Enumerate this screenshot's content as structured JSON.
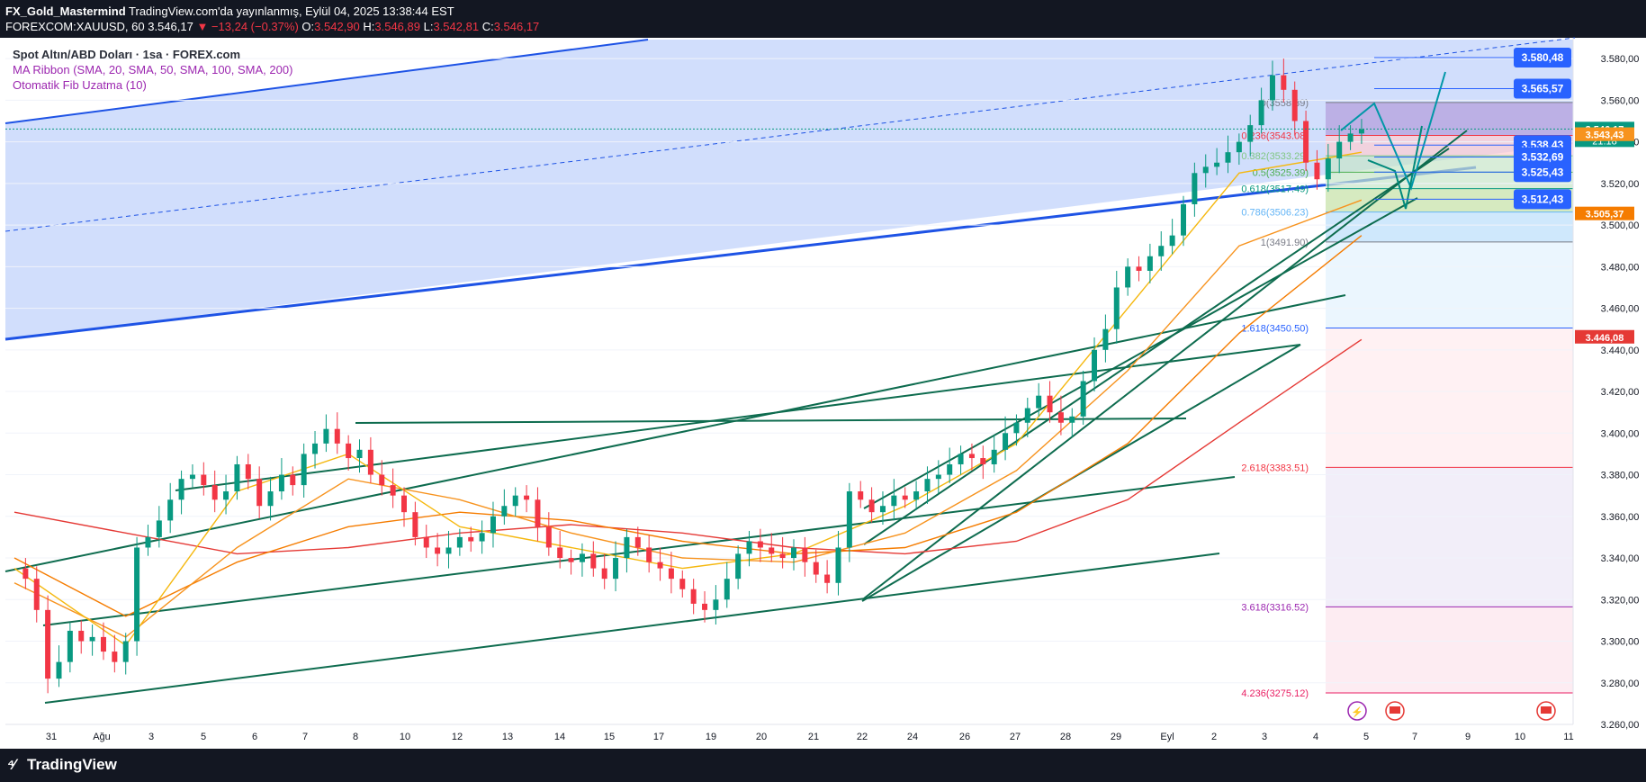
{
  "header": {
    "author": "FX_Gold_Mastermind",
    "published": "TradingView.com'da yayınlanmış, Eylül 04, 2025 13:38:44 EST",
    "symbol": "FOREXCOM:XAUUSD, 60",
    "last": "3.546,17",
    "change": "▼ −13,24 (−0.37%)",
    "o_label": "O:",
    "o_val": "3.542,90",
    "h_label": "H:",
    "h_val": "3.546,89",
    "l_label": "L:",
    "l_val": "3.542,81",
    "c_label": "C:",
    "c_val": "3.546,17"
  },
  "legend": {
    "symbol": "Spot Altın/ABD Doları · 1sa · FOREX.com",
    "ma_ribbon": "MA Ribbon (SMA, 20, SMA, 50, SMA, 100, SMA, 200)",
    "fib": "Otomatik Fib Uzatma (10)"
  },
  "footer": {
    "brand": "TradingView"
  },
  "colors": {
    "up": "#089981",
    "down": "#f23645",
    "channel": "#1e53e5",
    "trend": "#0e6c4f",
    "sma20": "#f5b80f",
    "sma50": "#f7931e",
    "sma100": "#f57c00",
    "sma200": "#e53935"
  },
  "chart_data": {
    "type": "candlestick",
    "timeframe": "1h",
    "y_range": [
      3260,
      3590
    ],
    "x_tick_labels": [
      "31",
      "Ağu",
      "3",
      "5",
      "6",
      "7",
      "8",
      "10",
      "12",
      "13",
      "14",
      "15",
      "17",
      "19",
      "20",
      "21",
      "22",
      "24",
      "26",
      "27",
      "28",
      "29",
      "Eyl",
      "2",
      "3",
      "4",
      "5",
      "7",
      "9",
      "10",
      "11"
    ],
    "y_tick_labels": [
      "3.580,00",
      "3.560,00",
      "3.540,00",
      "3.520,00",
      "3.500,00",
      "3.480,00",
      "3.460,00",
      "3.440,00",
      "3.420,00",
      "3.400,00",
      "3.380,00",
      "3.360,00",
      "3.340,00",
      "3.320,00",
      "3.300,00",
      "3.280,00",
      "3.260,00"
    ],
    "price_path": [
      [
        0,
        3335
      ],
      [
        1,
        3330
      ],
      [
        2,
        3315
      ],
      [
        3,
        3282
      ],
      [
        4,
        3290
      ],
      [
        5,
        3305
      ],
      [
        6,
        3300
      ],
      [
        7,
        3302
      ],
      [
        8,
        3295
      ],
      [
        9,
        3290
      ],
      [
        10,
        3300
      ],
      [
        11,
        3345
      ],
      [
        12,
        3350
      ],
      [
        13,
        3358
      ],
      [
        14,
        3368
      ],
      [
        15,
        3378
      ],
      [
        16,
        3380
      ],
      [
        17,
        3375
      ],
      [
        18,
        3368
      ],
      [
        19,
        3372
      ],
      [
        20,
        3385
      ],
      [
        21,
        3378
      ],
      [
        22,
        3365
      ],
      [
        23,
        3372
      ],
      [
        24,
        3380
      ],
      [
        25,
        3375
      ],
      [
        26,
        3390
      ],
      [
        27,
        3395
      ],
      [
        28,
        3402
      ],
      [
        29,
        3395
      ],
      [
        30,
        3388
      ],
      [
        31,
        3392
      ],
      [
        32,
        3380
      ],
      [
        33,
        3375
      ],
      [
        34,
        3370
      ],
      [
        35,
        3362
      ],
      [
        36,
        3350
      ],
      [
        37,
        3345
      ],
      [
        38,
        3342
      ],
      [
        39,
        3345
      ],
      [
        40,
        3350
      ],
      [
        41,
        3348
      ],
      [
        42,
        3352
      ],
      [
        43,
        3360
      ],
      [
        44,
        3365
      ],
      [
        45,
        3370
      ],
      [
        46,
        3368
      ],
      [
        47,
        3355
      ],
      [
        48,
        3345
      ],
      [
        49,
        3340
      ],
      [
        50,
        3338
      ],
      [
        51,
        3342
      ],
      [
        52,
        3335
      ],
      [
        53,
        3330
      ],
      [
        54,
        3340
      ],
      [
        55,
        3350
      ],
      [
        56,
        3345
      ],
      [
        57,
        3338
      ],
      [
        58,
        3335
      ],
      [
        59,
        3330
      ],
      [
        60,
        3325
      ],
      [
        61,
        3318
      ],
      [
        62,
        3315
      ],
      [
        63,
        3320
      ],
      [
        64,
        3330
      ],
      [
        65,
        3342
      ],
      [
        66,
        3348
      ],
      [
        67,
        3345
      ],
      [
        68,
        3342
      ],
      [
        69,
        3340
      ],
      [
        70,
        3345
      ],
      [
        71,
        3338
      ],
      [
        72,
        3332
      ],
      [
        73,
        3328
      ],
      [
        74,
        3345
      ],
      [
        75,
        3372
      ],
      [
        76,
        3368
      ],
      [
        77,
        3362
      ],
      [
        78,
        3365
      ],
      [
        79,
        3370
      ],
      [
        80,
        3368
      ],
      [
        81,
        3372
      ],
      [
        82,
        3378
      ],
      [
        83,
        3380
      ],
      [
        84,
        3385
      ],
      [
        85,
        3390
      ],
      [
        86,
        3388
      ],
      [
        87,
        3385
      ],
      [
        88,
        3392
      ],
      [
        89,
        3400
      ],
      [
        90,
        3405
      ],
      [
        91,
        3412
      ],
      [
        92,
        3418
      ],
      [
        93,
        3410
      ],
      [
        94,
        3405
      ],
      [
        95,
        3408
      ],
      [
        96,
        3425
      ],
      [
        97,
        3440
      ],
      [
        98,
        3450
      ],
      [
        99,
        3470
      ],
      [
        100,
        3480
      ],
      [
        101,
        3478
      ],
      [
        102,
        3485
      ],
      [
        103,
        3490
      ],
      [
        104,
        3495
      ],
      [
        105,
        3510
      ],
      [
        106,
        3525
      ],
      [
        107,
        3528
      ],
      [
        108,
        3530
      ],
      [
        109,
        3535
      ],
      [
        110,
        3540
      ],
      [
        111,
        3548
      ],
      [
        112,
        3560
      ],
      [
        113,
        3572
      ],
      [
        114,
        3565
      ],
      [
        115,
        3550
      ],
      [
        116,
        3530
      ],
      [
        117,
        3522
      ],
      [
        118,
        3532
      ],
      [
        119,
        3540
      ],
      [
        120,
        3544
      ],
      [
        121,
        3546
      ]
    ],
    "sma20": [
      [
        0,
        3335
      ],
      [
        10,
        3298
      ],
      [
        20,
        3372
      ],
      [
        30,
        3390
      ],
      [
        40,
        3355
      ],
      [
        50,
        3345
      ],
      [
        60,
        3335
      ],
      [
        70,
        3342
      ],
      [
        80,
        3365
      ],
      [
        90,
        3395
      ],
      [
        100,
        3460
      ],
      [
        110,
        3525
      ],
      [
        121,
        3535
      ]
    ],
    "sma50": [
      [
        0,
        3328
      ],
      [
        10,
        3302
      ],
      [
        20,
        3345
      ],
      [
        30,
        3378
      ],
      [
        40,
        3368
      ],
      [
        50,
        3352
      ],
      [
        60,
        3340
      ],
      [
        70,
        3338
      ],
      [
        80,
        3352
      ],
      [
        90,
        3382
      ],
      [
        100,
        3430
      ],
      [
        110,
        3490
      ],
      [
        121,
        3512
      ]
    ],
    "sma100": [
      [
        0,
        3340
      ],
      [
        10,
        3312
      ],
      [
        20,
        3338
      ],
      [
        30,
        3355
      ],
      [
        40,
        3362
      ],
      [
        50,
        3358
      ],
      [
        60,
        3348
      ],
      [
        70,
        3342
      ],
      [
        80,
        3345
      ],
      [
        90,
        3362
      ],
      [
        100,
        3395
      ],
      [
        110,
        3448
      ],
      [
        121,
        3495
      ]
    ],
    "sma200": [
      [
        0,
        3362
      ],
      [
        10,
        3352
      ],
      [
        20,
        3342
      ],
      [
        30,
        3345
      ],
      [
        40,
        3352
      ],
      [
        50,
        3356
      ],
      [
        60,
        3352
      ],
      [
        70,
        3345
      ],
      [
        80,
        3342
      ],
      [
        90,
        3348
      ],
      [
        100,
        3368
      ],
      [
        110,
        3405
      ],
      [
        121,
        3445
      ]
    ],
    "fib_levels": [
      {
        "label": "0(3558.89)",
        "value": 3558.89,
        "color": "#787b86"
      },
      {
        "label": "0.236(3543.08)",
        "value": 3543.08,
        "color": "#f23645"
      },
      {
        "label": "0.382(3533.29)",
        "value": 3533.29,
        "color": "#81c784"
      },
      {
        "label": "0.5(3525.39)",
        "value": 3525.39,
        "color": "#4caf50"
      },
      {
        "label": "0.618(3517.49)",
        "value": 3517.49,
        "color": "#089981"
      },
      {
        "label": "0.786(3506.23)",
        "value": 3506.23,
        "color": "#64b5f6"
      },
      {
        "label": "1(3491.90)",
        "value": 3491.9,
        "color": "#787b86"
      },
      {
        "label": "1.618(3450.50)",
        "value": 3450.5,
        "color": "#2962ff"
      },
      {
        "label": "2.618(3383.51)",
        "value": 3383.51,
        "color": "#f23645"
      },
      {
        "label": "3.618(3316.52)",
        "value": 3316.52,
        "color": "#9c27b0"
      },
      {
        "label": "4.236(3275.12)",
        "value": 3275.12,
        "color": "#e91e63"
      }
    ],
    "target_labels": [
      {
        "text": "3.580,48",
        "value": 3580.48
      },
      {
        "text": "3.565,57",
        "value": 3565.57
      },
      {
        "text": "3.538,43",
        "value": 3538.43
      },
      {
        "text": "3.532,69",
        "value": 3532.69
      },
      {
        "text": "3.525,43",
        "value": 3525.43
      },
      {
        "text": "3.512,43",
        "value": 3512.43
      }
    ],
    "price_badges": [
      {
        "text": "3.546,17",
        "sub": "21:18",
        "value": 3546.17,
        "color": "#089981"
      },
      {
        "text": "3.543,46",
        "value": 3543.46,
        "color": "#f5b80f"
      },
      {
        "text": "3.543,43",
        "value": 3543.43,
        "color": "#f7931e"
      },
      {
        "text": "3.505,37",
        "value": 3505.37,
        "color": "#f57c00"
      },
      {
        "text": "3.446,08",
        "value": 3446.08,
        "color": "#e53935"
      }
    ]
  }
}
